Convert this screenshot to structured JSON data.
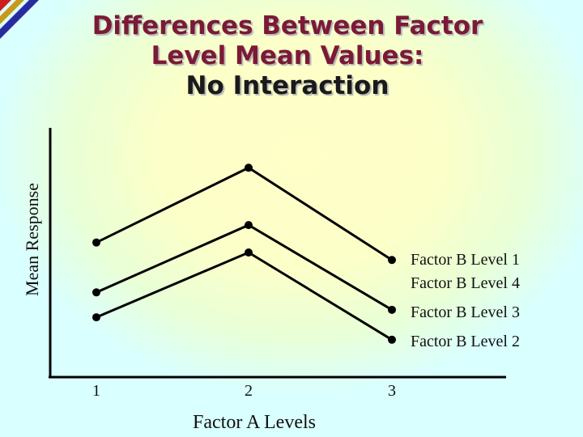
{
  "title": {
    "line1": "Differences Between Factor",
    "line2": "Level Mean Values:",
    "line3": "No Interaction"
  },
  "colors": {
    "title": "#7a1a36",
    "series": "#000000",
    "background": "#d9ffff",
    "highlight": "#ffffc8",
    "stripe_red": "#cc1f1f",
    "stripe_gold": "#c99a1a",
    "stripe_blue": "#2a2aa0"
  },
  "chart_data": {
    "type": "line",
    "xlabel": "Factor A Levels",
    "ylabel": "Mean Response",
    "x_ticks": [
      "1",
      "2",
      "3"
    ],
    "y_ticks": [],
    "ylim": [
      0,
      100
    ],
    "grid": false,
    "legend": "right, labels beside line ends",
    "series": [
      {
        "name": "Factor B Level 1",
        "x": [
          1,
          2,
          3
        ],
        "y": [
          54,
          84,
          47
        ]
      },
      {
        "name": "Factor B Level 4",
        "x": [
          1,
          2,
          3
        ],
        "y": [
          34,
          61,
          27
        ]
      },
      {
        "name": "Factor B Level 3",
        "x": [
          1,
          2,
          3
        ],
        "y": [
          24,
          50,
          15
        ]
      },
      {
        "name": "Factor B Level 2",
        "x": [
          1,
          2,
          3
        ],
        "y": null
      }
    ],
    "legend_labels": [
      "Factor B Level 1",
      "Factor B Level 4",
      "Factor B Level 3",
      "Factor B Level 2"
    ]
  }
}
